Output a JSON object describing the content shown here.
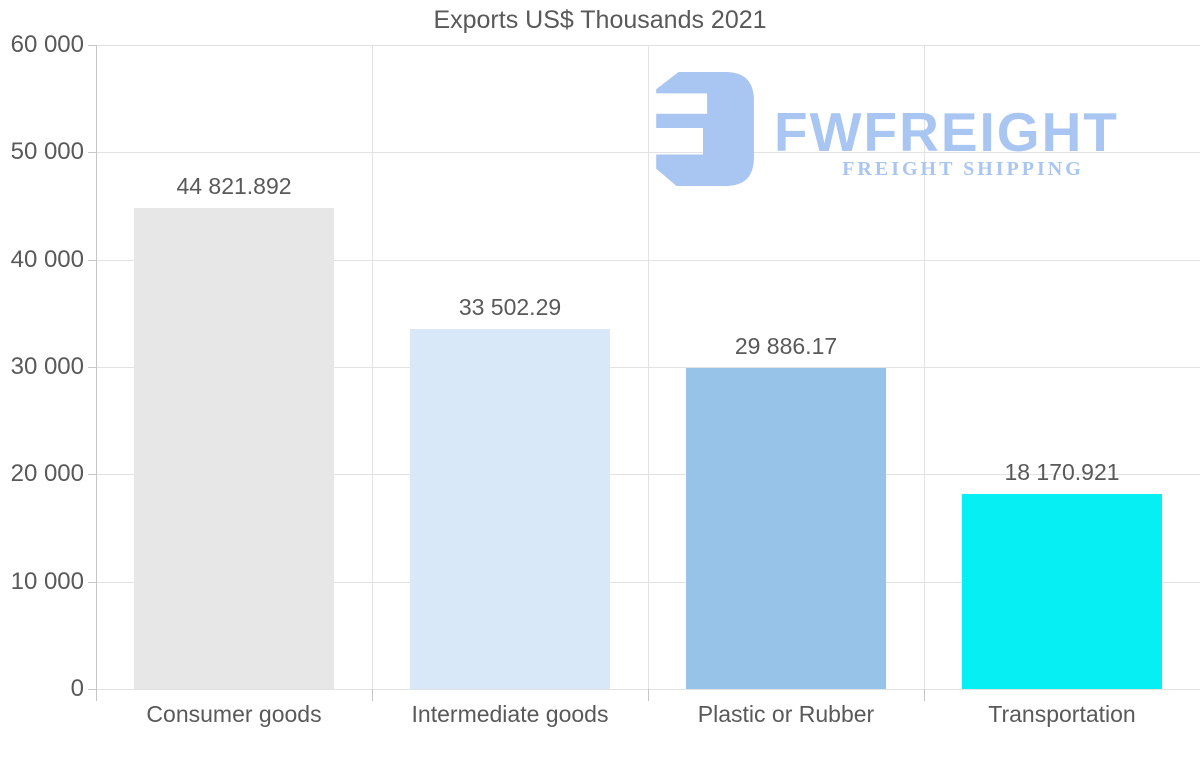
{
  "title": "Exports US$ Thousands 2021",
  "logo": {
    "brand": "FWFREIGHT",
    "tagline": "FREIGHT SHIPPING",
    "color": "#a9c5f2"
  },
  "colors": {
    "text": "#595959",
    "gridline": "#e2e2e2",
    "axis": "#c6c6c6",
    "background": "#ffffff"
  },
  "chart_data": {
    "type": "bar",
    "title": "Exports US$ Thousands 2021",
    "categories": [
      "Consumer goods",
      "Intermediate goods",
      "Plastic or Rubber",
      "Transportation"
    ],
    "values": [
      44821.892,
      33502.29,
      29886.17,
      18170.921
    ],
    "value_labels": [
      "44 821.892",
      "33 502.29",
      "29 886.17",
      "18 170.921"
    ],
    "bar_colors": [
      "#e7e7e7",
      "#d9e8f9",
      "#98c3e9",
      "#06eff2"
    ],
    "xlabel": "",
    "ylabel": "",
    "ylim": [
      0,
      60000
    ],
    "ytick_interval": 10000,
    "ytick_labels": [
      "0",
      "10 000",
      "20 000",
      "30 000",
      "40 000",
      "50 000",
      "60 000"
    ],
    "grid": true,
    "legend": "none"
  }
}
